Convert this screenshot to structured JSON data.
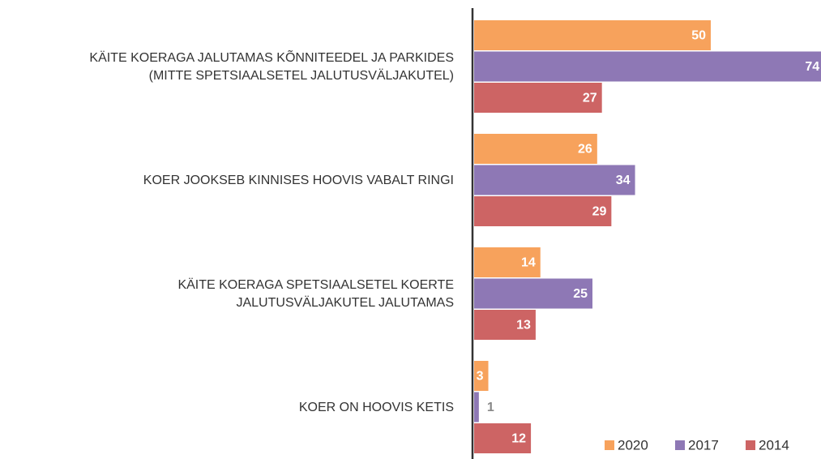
{
  "chart_data": {
    "type": "bar",
    "orientation": "horizontal",
    "categories": [
      "KÄITE KOERAGA JALUTAMAS KÕNNITEEDEL JA PARKIDES\n(MITTE SPETSIAALSETEL JALUTUSVÄLJAKUTEL)",
      "KOER JOOKSEB KINNISES HOOVIS VABALT RINGI",
      "KÄITE KOERAGA SPETSIAALSETEL KOERTE\nJALUTUSVÄLJAKUTEL JALUTAMAS",
      "KOER ON HOOVIS KETIS"
    ],
    "series": [
      {
        "name": "2020",
        "color": "#f7a25c",
        "values": [
          50,
          26,
          14,
          3
        ]
      },
      {
        "name": "2017",
        "color": "#8e78b5",
        "values": [
          74,
          34,
          25,
          1
        ]
      },
      {
        "name": "2014",
        "color": "#cd6464",
        "values": [
          27,
          29,
          13,
          12
        ]
      }
    ],
    "legend": "bottom-right"
  }
}
